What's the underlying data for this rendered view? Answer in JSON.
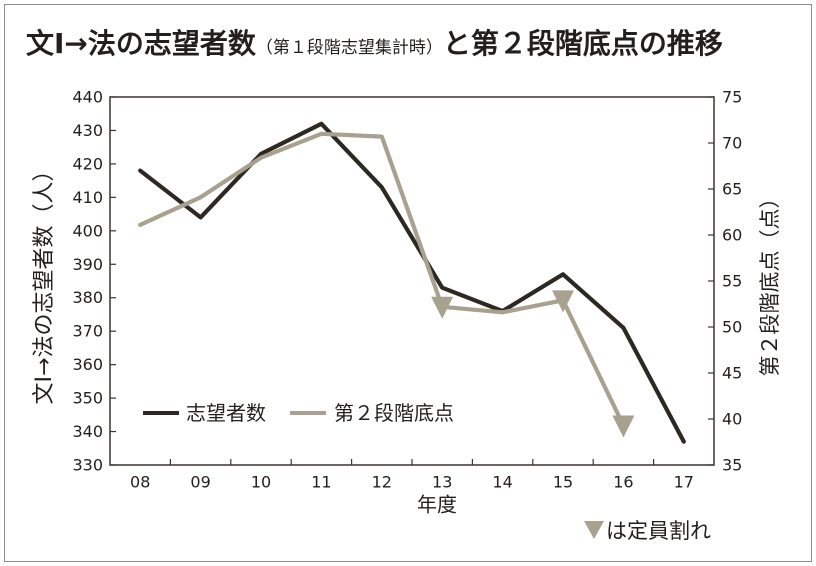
{
  "chart_data": {
    "type": "line",
    "title": [
      "文Ⅰ→法の志望者数",
      "（第１段階志望集計時）",
      "と第２段階底点の推移"
    ],
    "xlabel": "年度",
    "ylabel": "文Ⅰ→法の志望者数（人）",
    "y2label": "第２段階底点（点）",
    "categories": [
      "08",
      "09",
      "10",
      "11",
      "12",
      "13",
      "14",
      "15",
      "16",
      "17"
    ],
    "ylim": [
      330,
      440
    ],
    "yticks": [
      330,
      340,
      350,
      360,
      370,
      380,
      390,
      400,
      410,
      420,
      430,
      440
    ],
    "y2lim": [
      35,
      75
    ],
    "y2ticks": [
      35,
      40,
      45,
      50,
      55,
      60,
      65,
      70,
      75
    ],
    "grid": false,
    "legend": "bottom-left",
    "series": [
      {
        "name": "志望者数",
        "axis": "left",
        "color": "#2e2823",
        "values": [
          418,
          404,
          423,
          432,
          413,
          383,
          376,
          387,
          371,
          337
        ]
      },
      {
        "name": "第２段階底点",
        "axis": "right",
        "color": "#a9a190",
        "values": [
          61.1,
          64.1,
          68.4,
          71.0,
          70.7,
          52.2,
          51.6,
          52.9,
          39.3,
          null
        ],
        "marker_points": [
          "13",
          "15",
          "16"
        ]
      }
    ],
    "annotation": {
      "marker_icon": "down-triangle-icon",
      "marker_color": "#a9a190",
      "text": "は定員割れ"
    }
  }
}
